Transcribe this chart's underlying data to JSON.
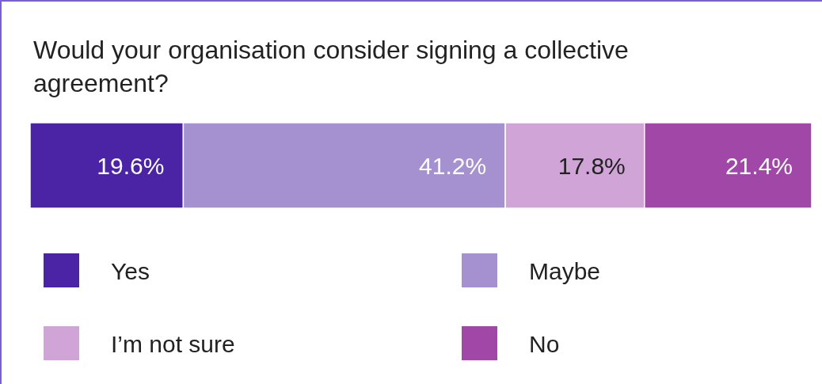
{
  "chart_data": {
    "type": "bar",
    "orientation": "horizontal",
    "stacked": true,
    "xlim": [
      0,
      100
    ],
    "title": "Would your organisation consider signing a collective agreement?",
    "categories": [
      null
    ],
    "legend": "bottom",
    "series": [
      {
        "name": "Yes",
        "color": "#4b24a6",
        "values": [
          19.6
        ],
        "value_labels": [
          "19.6%"
        ]
      },
      {
        "name": "Maybe",
        "color": "#a590d0",
        "values": [
          41.2
        ],
        "value_labels": [
          "41.2%"
        ]
      },
      {
        "name": "I’m not sure",
        "color": "#d0a4d6",
        "values": [
          17.8
        ],
        "value_labels": [
          "17.8%"
        ]
      },
      {
        "name": "No",
        "color": "#a047a8",
        "values": [
          21.4
        ],
        "value_labels": [
          "21.4%"
        ]
      }
    ]
  }
}
